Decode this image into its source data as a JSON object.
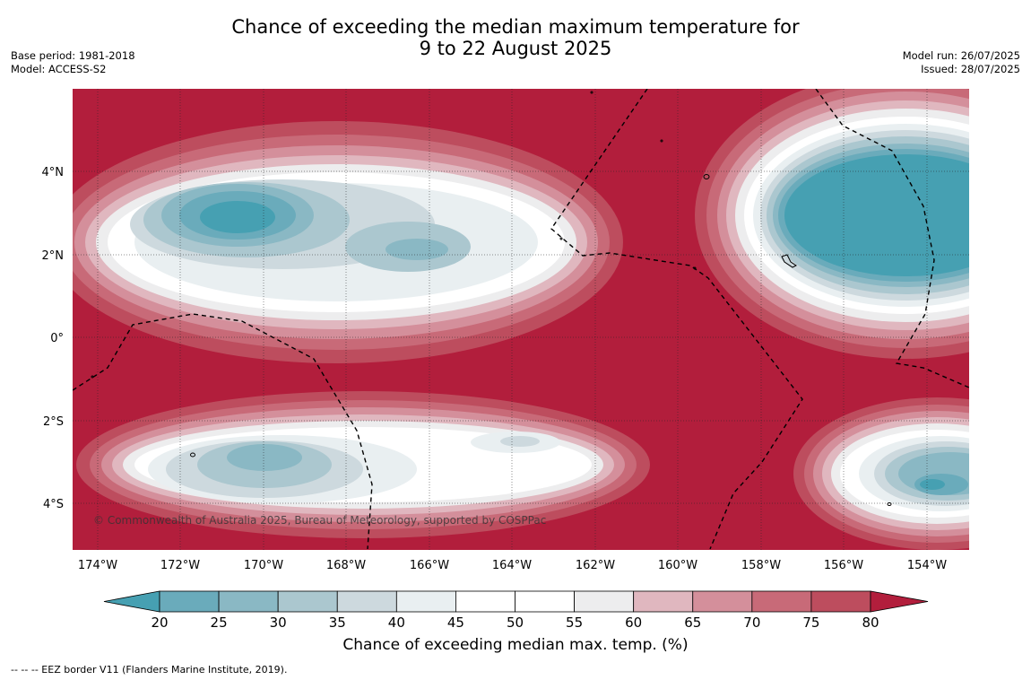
{
  "title_line1": "Chance of exceeding the median maximum temperature for",
  "title_line2": "9 to 22 August 2025",
  "meta_left": [
    "Base period: 1981-2018",
    "Model: ACCESS-S2"
  ],
  "meta_right": [
    "Model run: 26/07/2025",
    "Issued: 28/07/2025"
  ],
  "x_ticks": [
    "174°W",
    "172°W",
    "170°W",
    "168°W",
    "166°W",
    "164°W",
    "162°W",
    "160°W",
    "158°W",
    "156°W",
    "154°W"
  ],
  "y_ticks": [
    "4°N",
    "2°N",
    "0°",
    "2°S",
    "4°S"
  ],
  "copyright": "© Commonwealth of Australia 2025, Bureau of Meteorology, supported by COSPPac",
  "colorbar": {
    "title": "Chance of exceeding median max. temp. (%)",
    "labels": [
      "20",
      "25",
      "30",
      "35",
      "40",
      "45",
      "50",
      "55",
      "60",
      "65",
      "70",
      "75",
      "80"
    ],
    "colors": [
      "#46a0b2",
      "#6aabbb",
      "#8ab8c4",
      "#abc7cf",
      "#cdd9de",
      "#e9eff1",
      "#ffffff",
      "#ffffff",
      "#ededee",
      "#e0b7bf",
      "#d48f9b",
      "#c86a78",
      "#bd4d5e",
      "#b21e3c"
    ]
  },
  "footer": "--  --  -- EEZ border V11 (Flanders Marine Institute, 2019)."
}
